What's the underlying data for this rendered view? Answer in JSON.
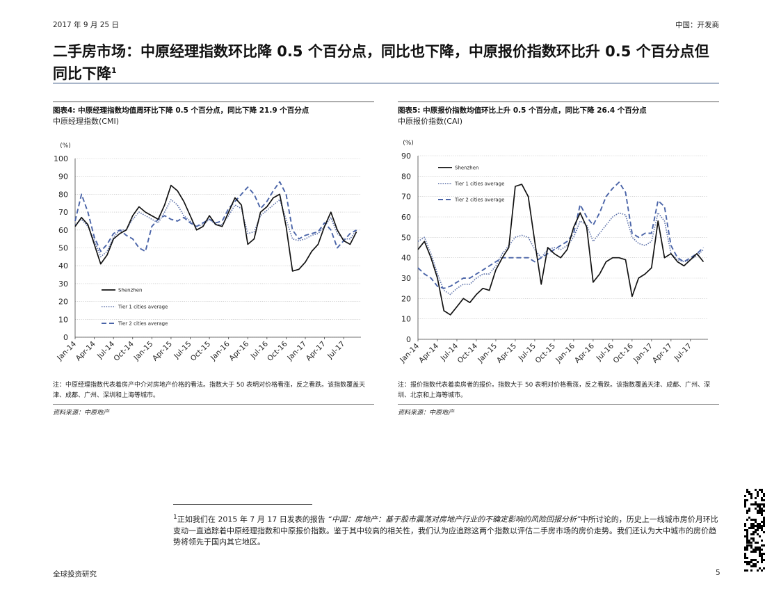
{
  "header": {
    "date": "2017 年 9 月 25 日",
    "section": "中国：开发商"
  },
  "title": {
    "text": "二手房市场：中原经理指数环比降 0.5 个百分点，同比也下降，中原报价指数环比升 0.5 个百分点但同比下降",
    "footnote_mark": "1"
  },
  "figures": [
    {
      "title": "图表4:  中原经理指数均值周环比下降 0.5 个百分点，同比下降 21.9 个百分点",
      "subtitle": "中原经理指数(CMI)",
      "unit": "(%)",
      "note": "注：中原经理指数代表着房产中介对房地产价格的看法。指数大于 50 表明对价格看涨，反之看跌。该指数覆盖天津、成都、广州、深圳和上海等城市。",
      "source": "资料来源：中原地产"
    },
    {
      "title": "图表5:  中原报价指数均值环比上升 0.5 个百分点，同比下降 26.4 个百分点",
      "subtitle": "中原报价指数(CAI)",
      "unit": "(%)",
      "note": "注：报价指数代表着卖房者的报价。指数大于 50 表明对价格看涨，反之看跌。该指数覆盖天津、成都、广州、深圳、北京和上海等城市。",
      "source": "资料来源：中原地产"
    }
  ],
  "chart_data": [
    {
      "type": "line",
      "ylim": [
        0,
        100
      ],
      "yticks": [
        0,
        10,
        20,
        30,
        40,
        50,
        60,
        70,
        80,
        90,
        100
      ],
      "x_range": [
        "Jan-14",
        "Sep-17"
      ],
      "xtick_labels": [
        "Jan-14",
        "Apr-14",
        "Jul-14",
        "Oct-14",
        "Jan-15",
        "Apr-15",
        "Jul-15",
        "Oct-15",
        "Jan-16",
        "Apr-16",
        "Jul-16",
        "Oct-16",
        "Jan-17",
        "Apr-17",
        "Jul-17"
      ],
      "grid": true,
      "legend_position": "bottom-left",
      "series": [
        {
          "name": "Shenzhen",
          "color": "#111111",
          "style": "solid",
          "x": [
            "Jan-14",
            "Feb-14",
            "Mar-14",
            "Apr-14",
            "May-14",
            "Jun-14",
            "Jul-14",
            "Aug-14",
            "Sep-14",
            "Oct-14",
            "Nov-14",
            "Dec-14",
            "Jan-15",
            "Feb-15",
            "Mar-15",
            "Apr-15",
            "May-15",
            "Jun-15",
            "Jul-15",
            "Aug-15",
            "Sep-15",
            "Oct-15",
            "Nov-15",
            "Dec-15",
            "Jan-16",
            "Feb-16",
            "Mar-16",
            "Apr-16",
            "May-16",
            "Jun-16",
            "Jul-16",
            "Aug-16",
            "Sep-16",
            "Oct-16",
            "Nov-16",
            "Dec-16",
            "Jan-17",
            "Feb-17",
            "Mar-17",
            "Apr-17",
            "May-17",
            "Jun-17",
            "Jul-17",
            "Aug-17",
            "Sep-17"
          ],
          "values": [
            62,
            67,
            63,
            52,
            41,
            46,
            55,
            58,
            60,
            68,
            73,
            70,
            68,
            66,
            74,
            85,
            82,
            76,
            68,
            60,
            62,
            68,
            63,
            62,
            70,
            78,
            74,
            52,
            55,
            70,
            73,
            78,
            80,
            62,
            37,
            38,
            42,
            48,
            52,
            62,
            70,
            60,
            54,
            52,
            59
          ]
        },
        {
          "name": "Tier 1 cities average",
          "color": "#5a6fa8",
          "style": "dotted",
          "x": [
            "Jan-14",
            "Feb-14",
            "Mar-14",
            "Apr-14",
            "May-14",
            "Jun-14",
            "Jul-14",
            "Aug-14",
            "Sep-14",
            "Oct-14",
            "Nov-14",
            "Dec-14",
            "Jan-15",
            "Feb-15",
            "Mar-15",
            "Apr-15",
            "May-15",
            "Jun-15",
            "Jul-15",
            "Aug-15",
            "Sep-15",
            "Oct-15",
            "Nov-15",
            "Dec-15",
            "Jan-16",
            "Feb-16",
            "Mar-16",
            "Apr-16",
            "May-16",
            "Jun-16",
            "Jul-16",
            "Aug-16",
            "Sep-16",
            "Oct-16",
            "Nov-16",
            "Dec-16",
            "Jan-17",
            "Feb-17",
            "Mar-17",
            "Apr-17",
            "May-17",
            "Jun-17",
            "Jul-17",
            "Aug-17",
            "Sep-17"
          ],
          "values": [
            63,
            66,
            62,
            54,
            45,
            48,
            56,
            60,
            60,
            66,
            70,
            68,
            66,
            64,
            70,
            77,
            74,
            68,
            65,
            62,
            63,
            66,
            63,
            63,
            68,
            74,
            72,
            58,
            59,
            68,
            71,
            74,
            77,
            66,
            55,
            54,
            55,
            57,
            58,
            62,
            67,
            58,
            55,
            55,
            60
          ]
        },
        {
          "name": "Tier 2 cities average",
          "color": "#4a64a8",
          "style": "dashed",
          "x": [
            "Jan-14",
            "Feb-14",
            "Mar-14",
            "Apr-14",
            "May-14",
            "Jun-14",
            "Jul-14",
            "Aug-14",
            "Sep-14",
            "Oct-14",
            "Nov-14",
            "Dec-14",
            "Jan-15",
            "Feb-15",
            "Mar-15",
            "Apr-15",
            "May-15",
            "Jun-15",
            "Jul-15",
            "Aug-15",
            "Sep-15",
            "Oct-15",
            "Nov-15",
            "Dec-15",
            "Jan-16",
            "Feb-16",
            "Mar-16",
            "Apr-16",
            "May-16",
            "Jun-16",
            "Jul-16",
            "Aug-16",
            "Sep-16",
            "Oct-16",
            "Nov-16",
            "Dec-16",
            "Jan-17",
            "Feb-17",
            "Mar-17",
            "Apr-17",
            "May-17",
            "Jun-17",
            "Jul-17",
            "Aug-17",
            "Sep-17"
          ],
          "values": [
            65,
            80,
            70,
            56,
            48,
            52,
            58,
            60,
            57,
            55,
            50,
            48,
            62,
            66,
            68,
            66,
            65,
            67,
            64,
            62,
            64,
            66,
            64,
            65,
            72,
            76,
            80,
            84,
            80,
            72,
            76,
            82,
            87,
            80,
            60,
            55,
            57,
            58,
            59,
            64,
            60,
            50,
            54,
            58,
            60
          ]
        }
      ]
    },
    {
      "type": "line",
      "ylim": [
        0,
        90
      ],
      "yticks": [
        0,
        10,
        20,
        30,
        40,
        50,
        60,
        70,
        80,
        90
      ],
      "x_range": [
        "Jan-14",
        "Sep-17"
      ],
      "xtick_labels": [
        "Jan-14",
        "Apr-14",
        "Jul-14",
        "Oct-14",
        "Jan-15",
        "Apr-15",
        "Jul-15",
        "Oct-15",
        "Jan-16",
        "Apr-16",
        "Jul-16",
        "Oct-16",
        "Jan-17",
        "Apr-17",
        "Jul-17"
      ],
      "grid": true,
      "legend_position": "top-left",
      "series": [
        {
          "name": "Shenzhen",
          "color": "#111111",
          "style": "solid",
          "x": [
            "Jan-14",
            "Feb-14",
            "Mar-14",
            "Apr-14",
            "May-14",
            "Jun-14",
            "Jul-14",
            "Aug-14",
            "Sep-14",
            "Oct-14",
            "Nov-14",
            "Dec-14",
            "Jan-15",
            "Feb-15",
            "Mar-15",
            "Apr-15",
            "May-15",
            "Jun-15",
            "Jul-15",
            "Aug-15",
            "Sep-15",
            "Oct-15",
            "Nov-15",
            "Dec-15",
            "Jan-16",
            "Feb-16",
            "Mar-16",
            "Apr-16",
            "May-16",
            "Jun-16",
            "Jul-16",
            "Aug-16",
            "Sep-16",
            "Oct-16",
            "Nov-16",
            "Dec-16",
            "Jan-17",
            "Feb-17",
            "Mar-17",
            "Apr-17",
            "May-17",
            "Jun-17",
            "Jul-17",
            "Aug-17",
            "Sep-17"
          ],
          "values": [
            44,
            48,
            40,
            30,
            14,
            12,
            16,
            20,
            18,
            22,
            25,
            24,
            34,
            40,
            45,
            75,
            76,
            70,
            48,
            27,
            45,
            42,
            40,
            44,
            55,
            62,
            55,
            28,
            32,
            38,
            40,
            40,
            39,
            21,
            30,
            32,
            35,
            58,
            40,
            42,
            38,
            36,
            39,
            42,
            38
          ]
        },
        {
          "name": "Tier 1 cities average",
          "color": "#5a6fa8",
          "style": "dotted",
          "x": [
            "Jan-14",
            "Feb-14",
            "Mar-14",
            "Apr-14",
            "May-14",
            "Jun-14",
            "Jul-14",
            "Aug-14",
            "Sep-14",
            "Oct-14",
            "Nov-14",
            "Dec-14",
            "Jan-15",
            "Feb-15",
            "Mar-15",
            "Apr-15",
            "May-15",
            "Jun-15",
            "Jul-15",
            "Aug-15",
            "Sep-15",
            "Oct-15",
            "Nov-15",
            "Dec-15",
            "Jan-16",
            "Feb-16",
            "Mar-16",
            "Apr-16",
            "May-16",
            "Jun-16",
            "Jul-16",
            "Aug-16",
            "Sep-16",
            "Oct-16",
            "Nov-16",
            "Dec-16",
            "Jan-17",
            "Feb-17",
            "Mar-17",
            "Apr-17",
            "May-17",
            "Jun-17",
            "Jul-17",
            "Aug-17",
            "Sep-17"
          ],
          "values": [
            48,
            50,
            42,
            32,
            24,
            22,
            25,
            27,
            27,
            30,
            32,
            32,
            36,
            42,
            46,
            50,
            51,
            50,
            44,
            40,
            44,
            45,
            44,
            46,
            50,
            58,
            56,
            48,
            52,
            56,
            60,
            62,
            61,
            50,
            47,
            46,
            48,
            62,
            58,
            42,
            39,
            38,
            39,
            41,
            44
          ]
        },
        {
          "name": "Tier 2 cities average",
          "color": "#4a64a8",
          "style": "dashed",
          "x": [
            "Jan-14",
            "Feb-14",
            "Mar-14",
            "Apr-14",
            "May-14",
            "Jun-14",
            "Jul-14",
            "Aug-14",
            "Sep-14",
            "Oct-14",
            "Nov-14",
            "Dec-14",
            "Jan-15",
            "Feb-15",
            "Mar-15",
            "Apr-15",
            "May-15",
            "Jun-15",
            "Jul-15",
            "Aug-15",
            "Sep-15",
            "Oct-15",
            "Nov-15",
            "Dec-15",
            "Jan-16",
            "Feb-16",
            "Mar-16",
            "Apr-16",
            "May-16",
            "Jun-16",
            "Jul-16",
            "Aug-16",
            "Sep-16",
            "Oct-16",
            "Nov-16",
            "Dec-16",
            "Jan-17",
            "Feb-17",
            "Mar-17",
            "Apr-17",
            "May-17",
            "Jun-17",
            "Jul-17",
            "Aug-17",
            "Sep-17"
          ],
          "values": [
            35,
            32,
            30,
            26,
            25,
            26,
            28,
            30,
            30,
            32,
            34,
            36,
            38,
            40,
            40,
            40,
            40,
            40,
            38,
            40,
            42,
            44,
            46,
            48,
            52,
            66,
            60,
            56,
            62,
            70,
            74,
            77,
            72,
            52,
            50,
            52,
            52,
            68,
            65,
            46,
            40,
            38,
            40,
            42,
            45
          ]
        }
      ]
    }
  ],
  "footnote": {
    "mark": "1",
    "text_before": "正如我们在 2015 年 7 月 17 日发表的报告",
    "report": "“中国：房地产：基于股市震荡对房地产行业的不确定影响的风险回报分析”",
    "text_after": "中所讨论的，历史上一线城市房价月环比变动一直追踪着中原经理指数和中原报价指数。鉴于其中较高的相关性，我们认为应追踪这两个指数以评估二手房市场的房价走势。我们还认为大中城市的房价趋势将领先于国内其它地区。"
  },
  "footer": {
    "left": "全球投资研究",
    "page": "5"
  }
}
